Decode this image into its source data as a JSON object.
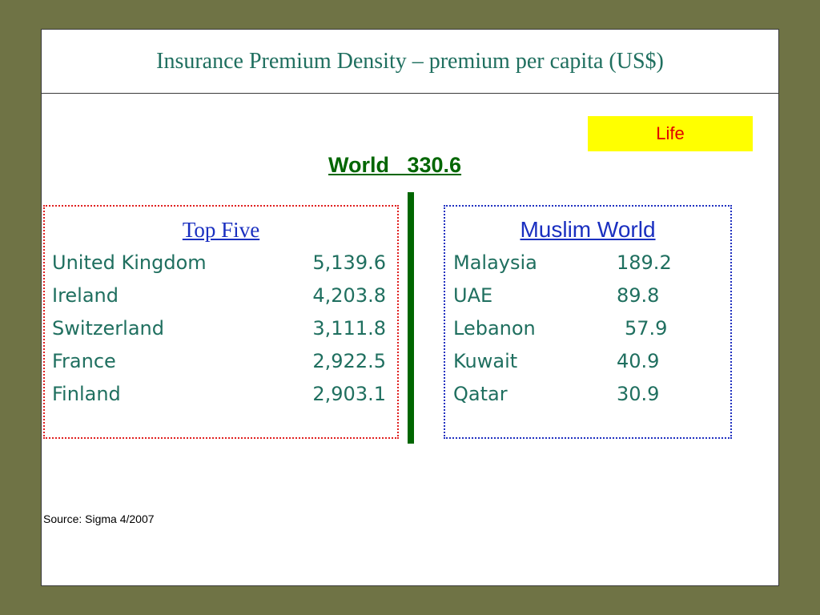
{
  "slide": {
    "title": "Insurance Premium Density – premium per capita (US$)",
    "badge": "Life",
    "world": "World   330.6",
    "top_five": {
      "heading": "Top Five",
      "rows": [
        {
          "name": "United Kingdom",
          "value": "5,139.6"
        },
        {
          "name": "Ireland",
          "value": "4,203.8"
        },
        {
          "name": "Switzerland",
          "value": "3,111.8"
        },
        {
          "name": "France",
          "value": "2,922.5"
        },
        {
          "name": "Finland",
          "value": "2,903.1"
        }
      ]
    },
    "muslim_world": {
      "heading": "Muslim World",
      "rows": [
        {
          "name": "Malaysia",
          "value": "189.2"
        },
        {
          "name": "UAE",
          "value": "89.8"
        },
        {
          "name": "Lebanon",
          "value": "57.9"
        },
        {
          "name": "Kuwait",
          "value": "40.9"
        },
        {
          "name": "Qatar",
          "value": "30.9"
        }
      ]
    },
    "source": "Source: Sigma 4/2007",
    "colors": {
      "background": "#6f7345",
      "title": "#1f6f5f",
      "badge_bg": "#ffff00",
      "badge_text": "#e00000",
      "world": "#006600",
      "heading": "#1a2fc0",
      "left_border": "#e02020",
      "right_border": "#2030c0"
    }
  }
}
